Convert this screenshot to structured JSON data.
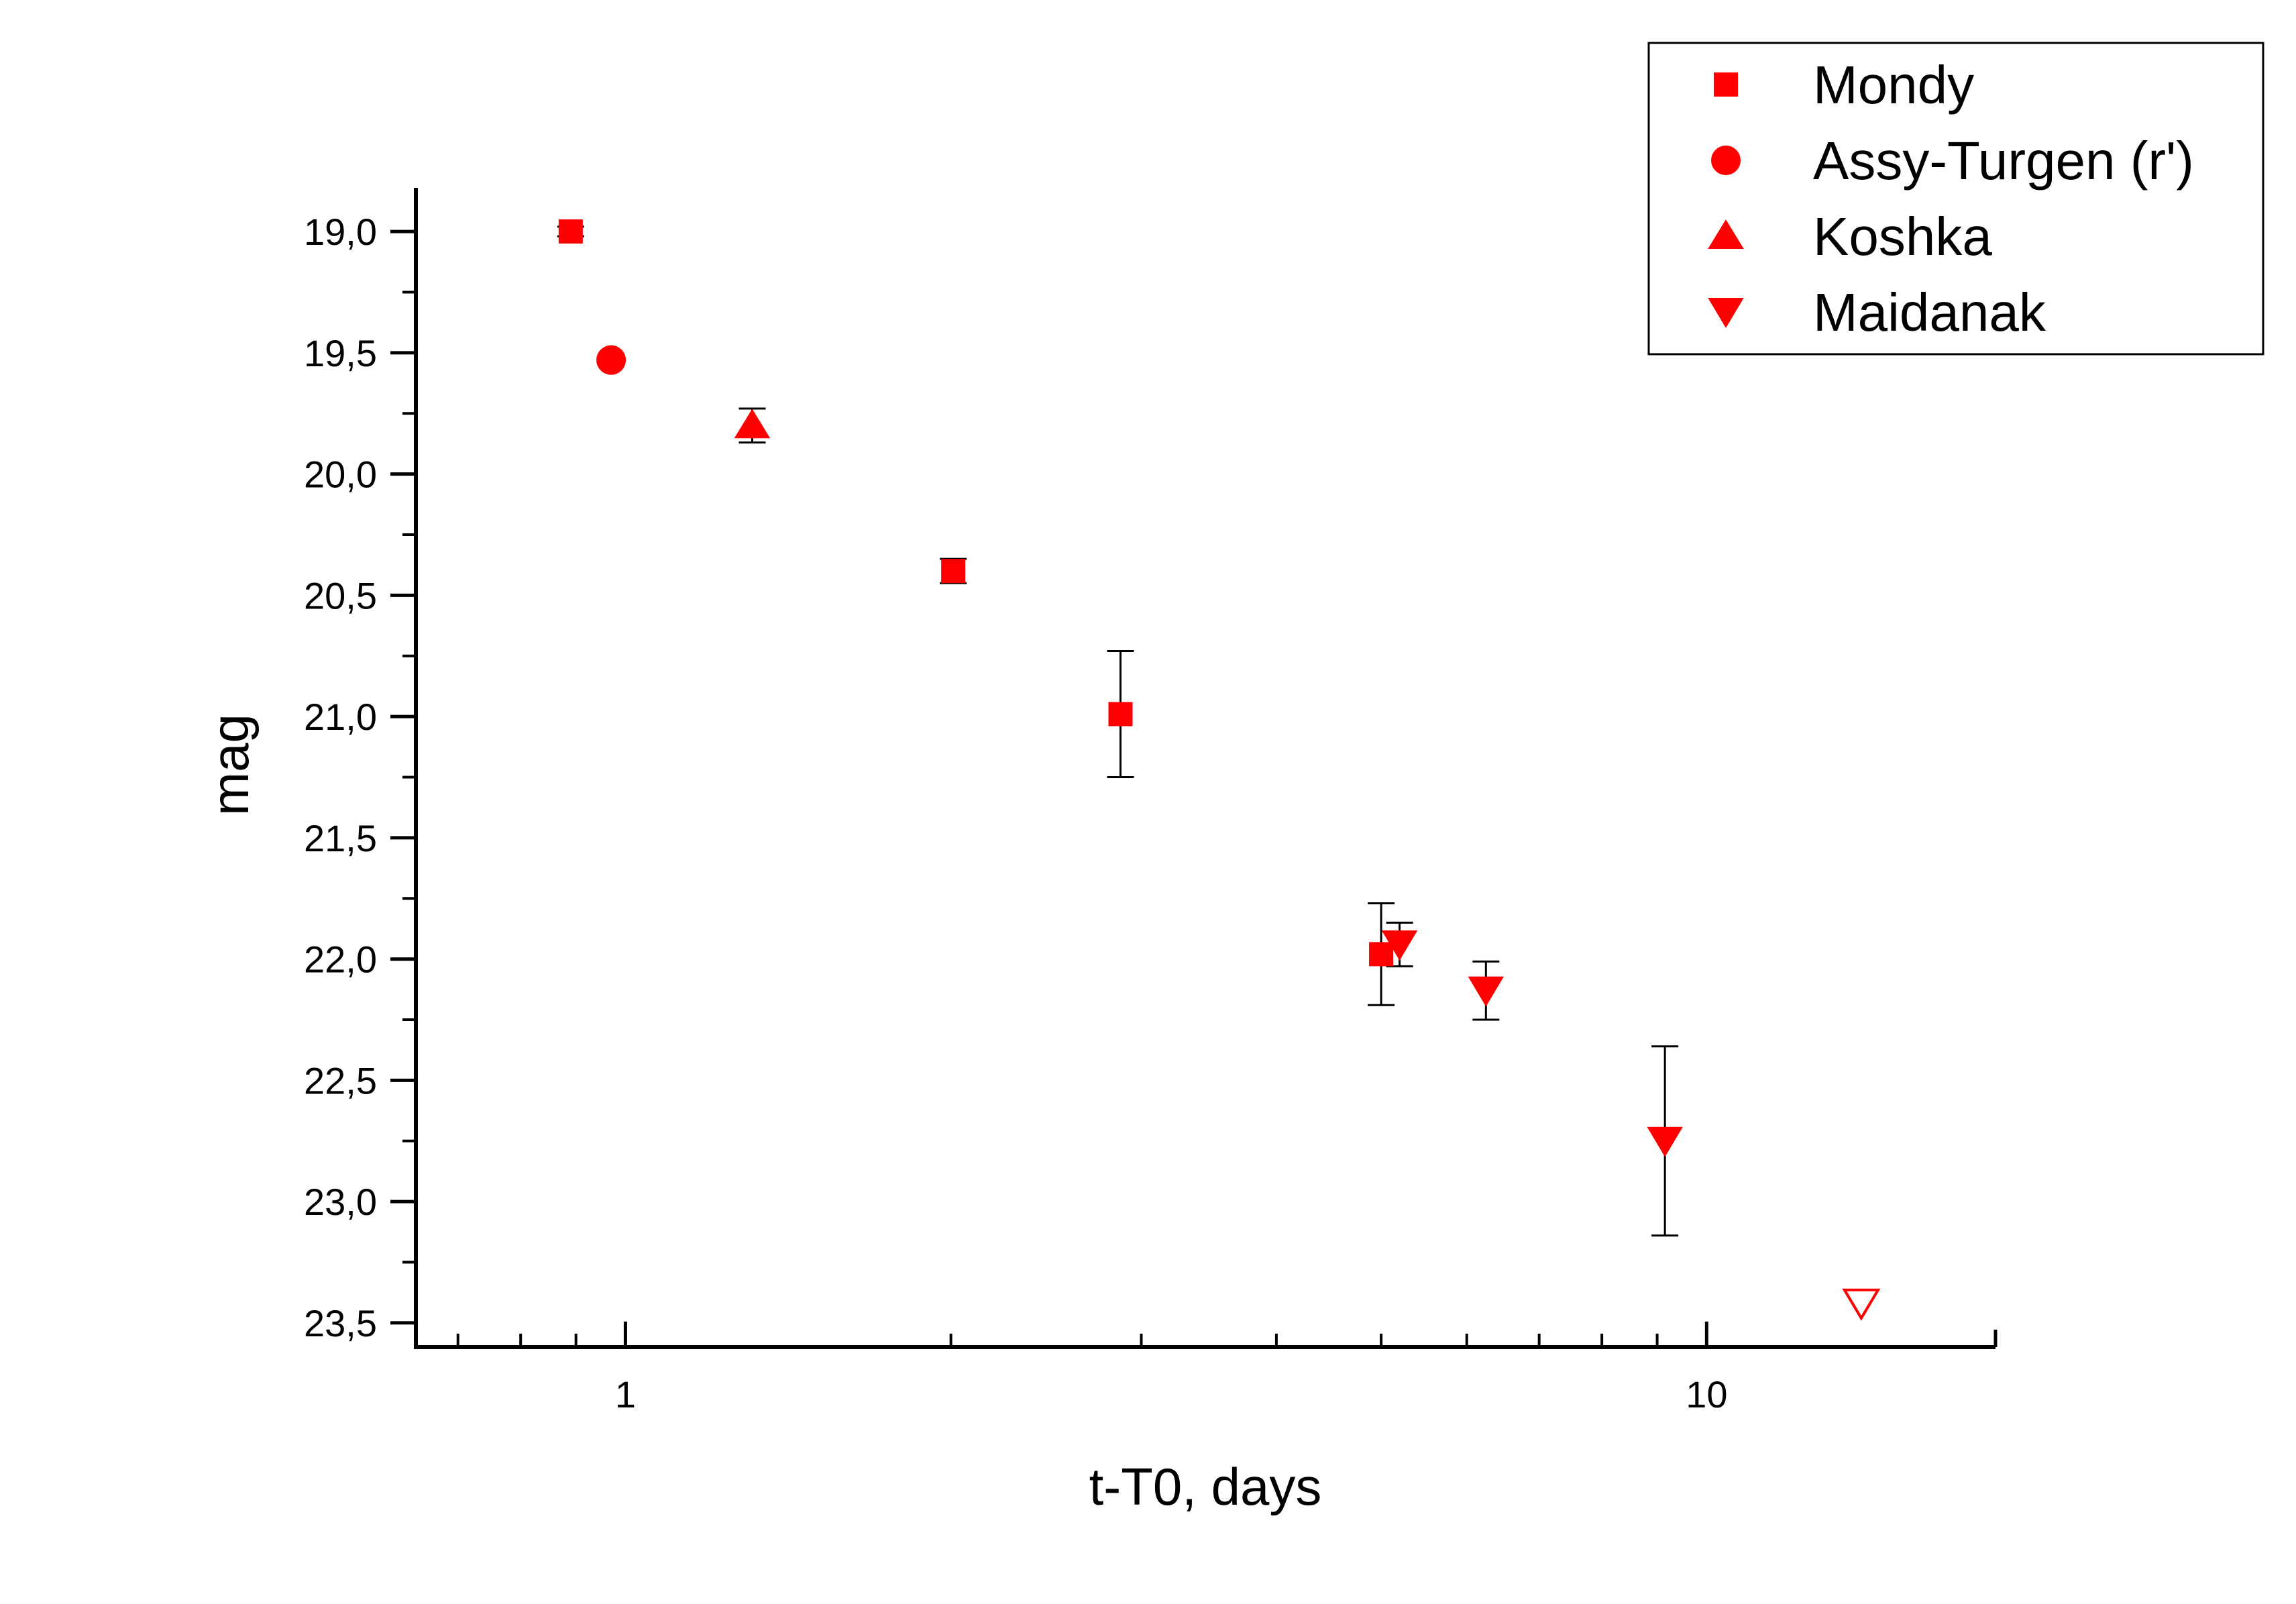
{
  "chart_data": {
    "type": "scatter",
    "xlabel": "t-T0, days",
    "ylabel": "mag",
    "x_scale": "log",
    "xlim": [
      0.64,
      18.5
    ],
    "ylim": [
      23.6,
      18.82
    ],
    "y_inverted": true,
    "x_tick_labels": [
      "1",
      "10"
    ],
    "y_ticks": [
      19.0,
      19.5,
      20.0,
      20.5,
      21.0,
      21.5,
      22.0,
      22.5,
      23.0,
      23.5
    ],
    "y_tick_labels": [
      "19,0",
      "19,5",
      "20,0",
      "20,5",
      "21,0",
      "21,5",
      "22,0",
      "22,5",
      "23,0",
      "23,5"
    ],
    "legend_position": "top-right",
    "marker_color": "#ff0000",
    "errorbar_color": "#000000",
    "series": [
      {
        "name": "Mondy",
        "marker": "square",
        "points": [
          {
            "x": 0.89,
            "y": 19.0,
            "err": 0.02
          },
          {
            "x": 2.01,
            "y": 20.4,
            "err": 0.05
          },
          {
            "x": 2.87,
            "y": 20.99,
            "err": 0.26
          },
          {
            "x": 5.0,
            "y": 21.98,
            "err": 0.21
          }
        ]
      },
      {
        "name": "Assy-Turgen (r')",
        "marker": "circle",
        "points": [
          {
            "x": 0.97,
            "y": 19.53
          }
        ]
      },
      {
        "name": "Koshka",
        "marker": "triangle-up",
        "points": [
          {
            "x": 1.31,
            "y": 19.8,
            "err": 0.07
          }
        ]
      },
      {
        "name": "Maidanak",
        "marker": "triangle-down",
        "points": [
          {
            "x": 5.2,
            "y": 21.94,
            "err": 0.09
          },
          {
            "x": 6.25,
            "y": 22.13,
            "err": 0.12
          },
          {
            "x": 9.15,
            "y": 22.75,
            "err": 0.39
          },
          {
            "x": 13.9,
            "y": 23.42,
            "upper_limit": true
          }
        ]
      }
    ]
  }
}
